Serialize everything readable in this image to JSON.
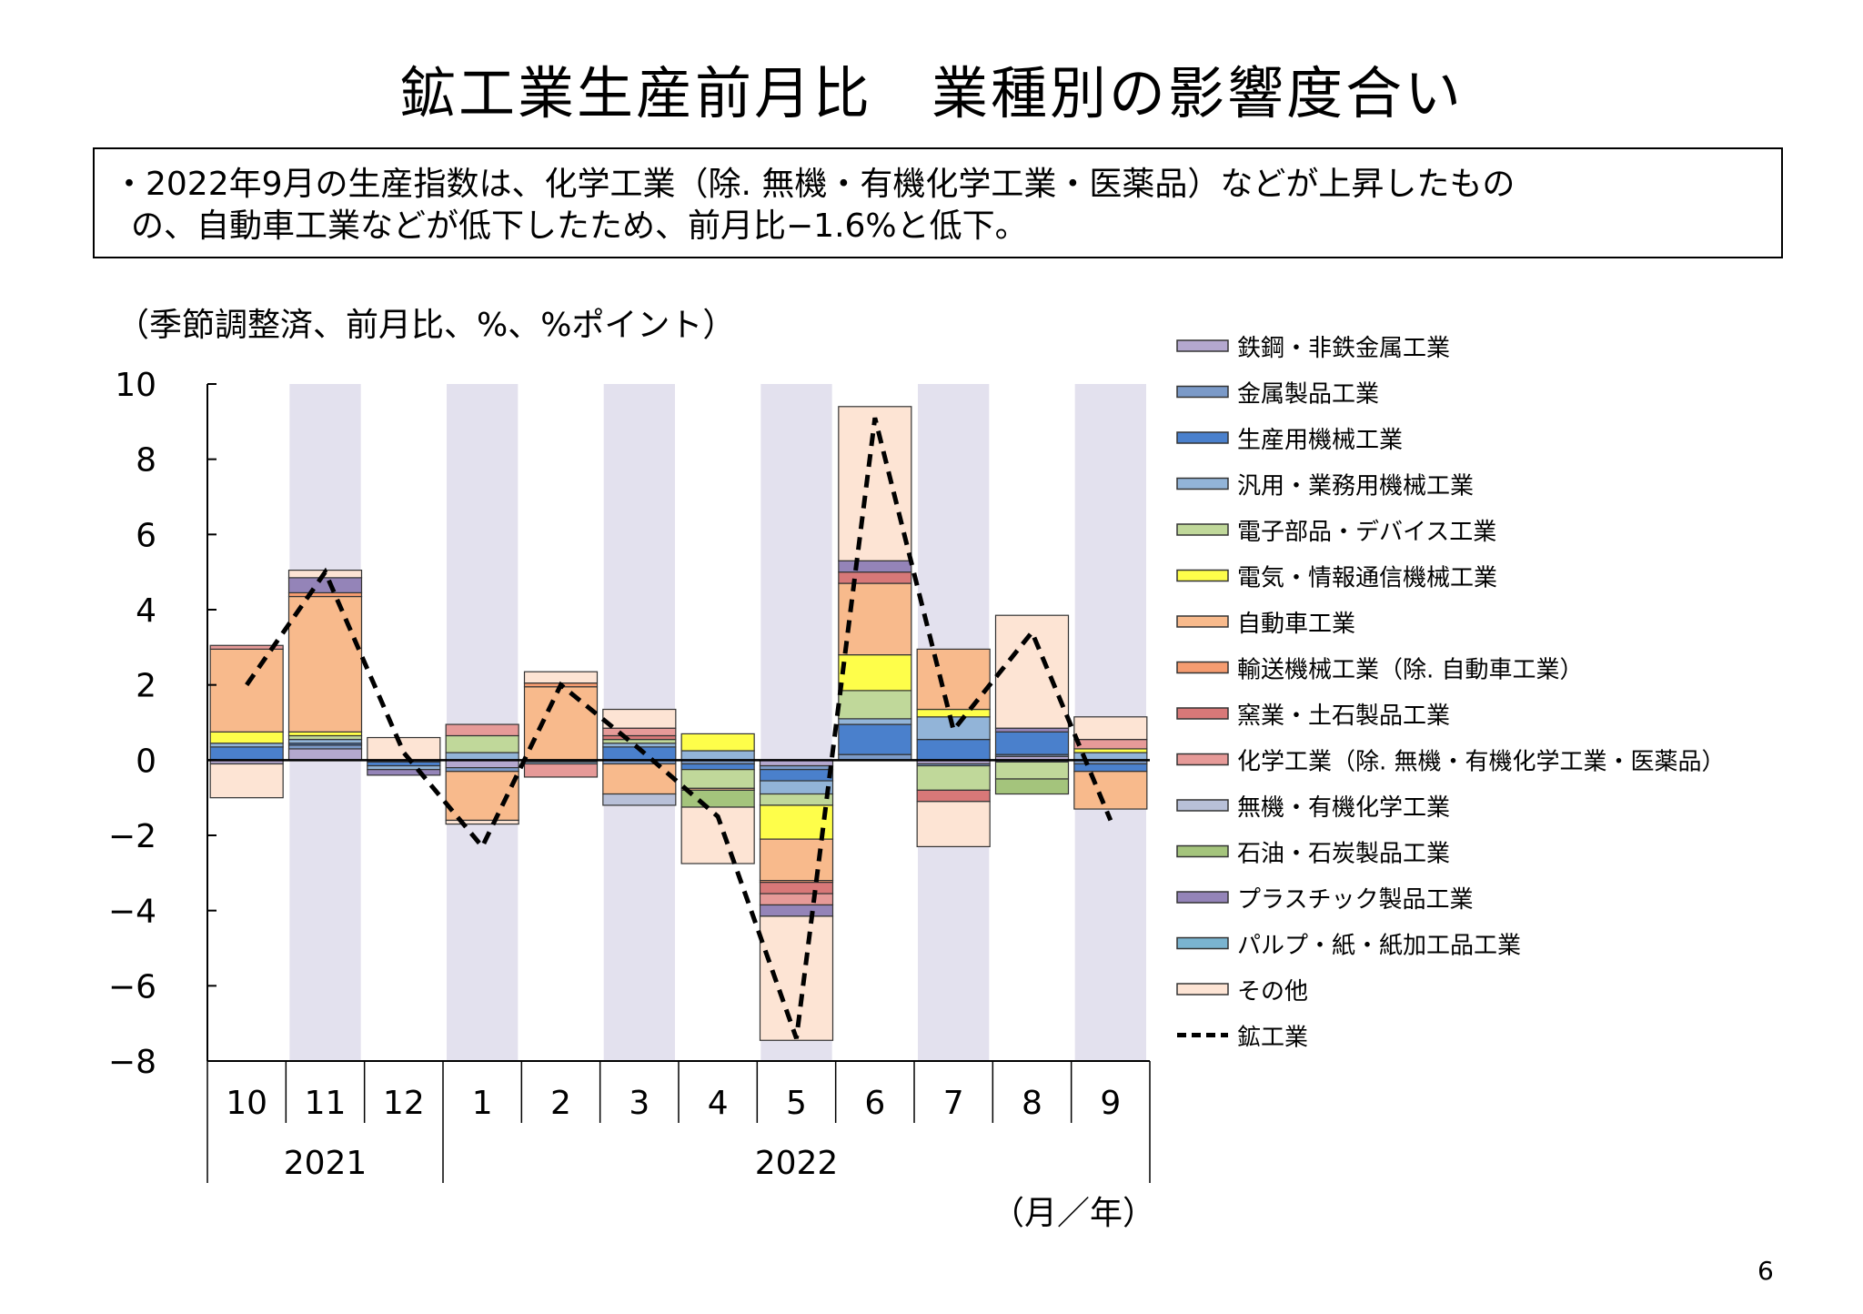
{
  "header": {
    "title": "鉱工業生産前月比　業種別の影響度合い"
  },
  "summary": {
    "line1": "・2022年9月の生産指数は、化学工業（除. 無機・有機化学工業・医薬品）などが上昇したもの",
    "line2": "の、自動車工業などが低下したため、前月比−1.6%と低下。"
  },
  "unit_note": "（季節調整済、前月比、%、%ポイント）",
  "x_unit_label": "（月／年）",
  "page_number": "6",
  "chart_data": {
    "type": "bar",
    "stacked": true,
    "ylim": [
      -8,
      10
    ],
    "y_ticks": [
      "10",
      "8",
      "6",
      "4",
      "2",
      "0",
      "−2",
      "−4",
      "−6",
      "−8"
    ],
    "y_tick_values": [
      10,
      8,
      6,
      4,
      2,
      0,
      -2,
      -4,
      -6,
      -8
    ],
    "categories": [
      "10",
      "11",
      "12",
      "1",
      "2",
      "3",
      "4",
      "5",
      "6",
      "7",
      "8",
      "9"
    ],
    "year_groups": [
      {
        "label": "2021",
        "start": 0,
        "count": 3
      },
      {
        "label": "2022",
        "start": 3,
        "count": 9
      }
    ],
    "shaded_columns": [
      1,
      3,
      5,
      7,
      9,
      11
    ],
    "shade_color": "#e3e1ee",
    "legend_position": "right",
    "series": [
      {
        "name": "鉄鋼・非鉄金属工業",
        "color": "#b4a8cf",
        "values": [
          -0.1,
          0.3,
          0,
          -0.2,
          0,
          0,
          0,
          -0.15,
          0,
          -0.1,
          0.1,
          0
        ]
      },
      {
        "name": "金属製品工業",
        "color": "#7b9ac8",
        "values": [
          0,
          0.1,
          -0.05,
          -0.1,
          -0.05,
          -0.1,
          -0.1,
          -0.1,
          0.15,
          -0.05,
          0.05,
          -0.1
        ]
      },
      {
        "name": "生産用機械工業",
        "color": "#4a80cc",
        "values": [
          0.35,
          0.05,
          -0.1,
          0,
          0,
          0.35,
          -0.15,
          -0.3,
          0.8,
          0.55,
          0.6,
          -0.2
        ]
      },
      {
        "name": "汎用・業務用機械工業",
        "color": "#92b4d8",
        "values": [
          0.1,
          0.1,
          -0.1,
          0.2,
          -0.05,
          0.1,
          0.25,
          -0.35,
          0.15,
          0.6,
          -0.05,
          0.2
        ]
      },
      {
        "name": "電子部品・デバイス工業",
        "color": "#c0d89a",
        "values": [
          0,
          0.1,
          0,
          0.45,
          0,
          0.1,
          -0.5,
          -0.3,
          0.75,
          -0.65,
          -0.45,
          0
        ]
      },
      {
        "name": "電気・情報通信機械工業",
        "color": "#fefe4a",
        "values": [
          0.3,
          0.1,
          0,
          0,
          0,
          0,
          0.45,
          -0.9,
          0.95,
          0.2,
          0,
          0.1
        ]
      },
      {
        "name": "自動車工業",
        "color": "#f8ba8c",
        "values": [
          2.2,
          3.6,
          0,
          -1.3,
          1.95,
          -0.8,
          -0.05,
          -1.1,
          1.9,
          1.6,
          0,
          -1.0
        ]
      },
      {
        "name": "輸送機械工業（除. 自動車工業）",
        "color": "#f59c70",
        "values": [
          0,
          0.1,
          0,
          0,
          0.1,
          0,
          0,
          -0.05,
          0,
          0,
          0,
          0
        ]
      },
      {
        "name": "窯業・土石製品工業",
        "color": "#d87878",
        "values": [
          0,
          0,
          0,
          0,
          0,
          0.1,
          0,
          -0.3,
          0.3,
          -0.3,
          0,
          0
        ]
      },
      {
        "name": "化学工業（除. 無機・有機化学工業・医薬品）",
        "color": "#e69a98",
        "values": [
          0.1,
          0,
          0,
          0.3,
          -0.35,
          0.2,
          0,
          -0.3,
          0,
          0,
          0,
          0.25
        ]
      },
      {
        "name": "無機・有機化学工業",
        "color": "#b8c0d8",
        "values": [
          0,
          0,
          0,
          0,
          0,
          -0.3,
          0,
          0,
          0,
          0,
          0,
          0
        ]
      },
      {
        "name": "石油・石炭製品工業",
        "color": "#a4c47c",
        "values": [
          0,
          0,
          0,
          0,
          0,
          0,
          -0.45,
          0,
          0,
          0,
          -0.4,
          0
        ]
      },
      {
        "name": "プラスチック製品工業",
        "color": "#9484b8",
        "values": [
          0,
          0.4,
          -0.15,
          0,
          0,
          0,
          0,
          -0.3,
          0.3,
          0,
          0.1,
          0
        ]
      },
      {
        "name": "パルプ・紙・紙加工品工業",
        "color": "#7ab4d0",
        "values": [
          0,
          0,
          0,
          0,
          0,
          0,
          0,
          0,
          0,
          0,
          0,
          0
        ]
      },
      {
        "name": "その他",
        "color": "#fde4d4",
        "values": [
          -0.9,
          0.2,
          0.6,
          -0.1,
          0.3,
          0.5,
          -1.5,
          -3.3,
          4.1,
          -1.2,
          3.0,
          0.6
        ]
      }
    ],
    "line_series": {
      "name": "鉱工業",
      "color": "#000000",
      "style": "dashed",
      "values": [
        2.0,
        5.0,
        0.2,
        -2.3,
        2.0,
        0.3,
        -1.5,
        -7.4,
        9.1,
        0.8,
        3.4,
        -1.6
      ]
    }
  }
}
